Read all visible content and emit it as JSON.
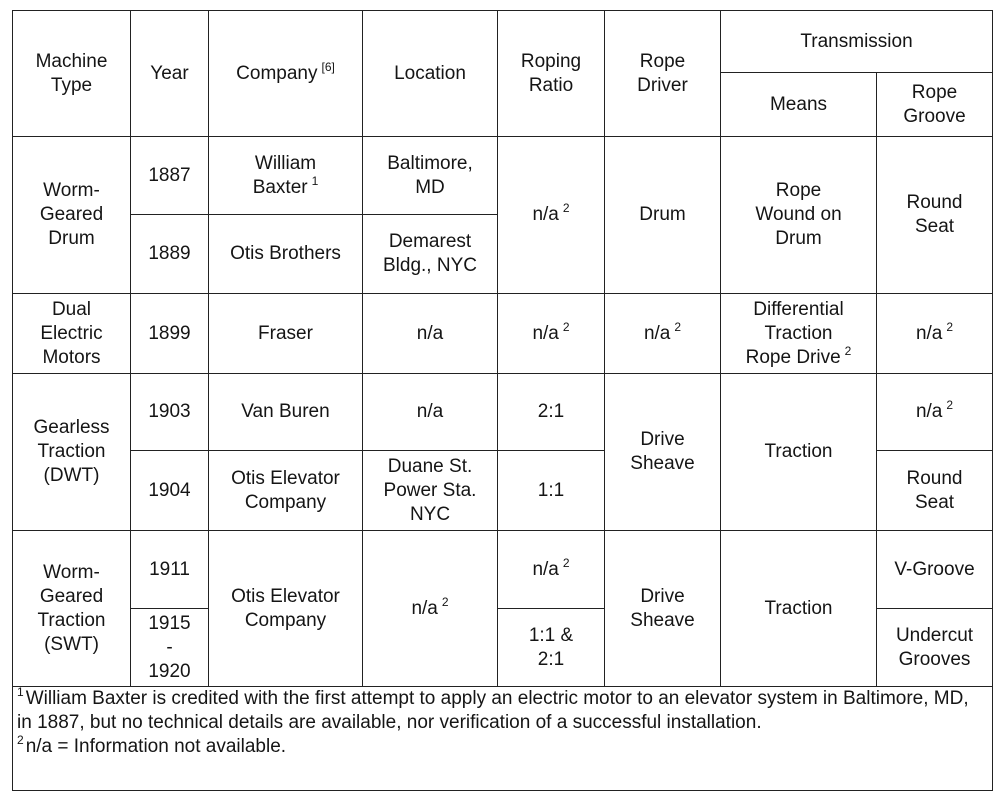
{
  "columns": [
    {
      "text": "Machine\nType"
    },
    {
      "text": "Year"
    },
    {
      "text": "Company",
      "note": "[6]"
    },
    {
      "text": "Location"
    },
    {
      "text": "Roping\nRatio"
    },
    {
      "text": "Rope\nDriver"
    }
  ],
  "transmission": {
    "title": "Transmission",
    "subcolumns": [
      {
        "text": "Means"
      },
      {
        "text": "Rope\nGroove"
      }
    ]
  },
  "rows": [
    [
      {
        "text": "Worm-\nGeared\nDrum"
      },
      {
        "text": "1887"
      },
      {
        "text": "William\nBaxter",
        "note": "1"
      },
      {
        "text": "Baltimore,\nMD"
      },
      {
        "text": "n/a",
        "note": "2"
      },
      {
        "text": "Drum"
      },
      {
        "text": "Rope\nWound on\nDrum"
      },
      {
        "text": "Round\nSeat"
      }
    ],
    [
      {
        "text": "1889"
      },
      {
        "text": "Otis Brothers"
      },
      {
        "text": "Demarest\nBldg., NYC"
      }
    ],
    [
      {
        "text": "Dual\nElectric\nMotors"
      },
      {
        "text": "1899"
      },
      {
        "text": "Fraser"
      },
      {
        "text": "n/a"
      },
      {
        "text": "n/a",
        "note": "2"
      },
      {
        "text": "n/a",
        "note": "2"
      },
      {
        "text": "Differential\nTraction\nRope Drive",
        "note": "2"
      },
      {
        "text": "n/a",
        "note": "2"
      }
    ],
    [
      {
        "text": "Gearless\nTraction\n(DWT)"
      },
      {
        "text": "1903"
      },
      {
        "text": "Van Buren"
      },
      {
        "text": "n/a"
      },
      {
        "text": "2:1"
      },
      {
        "text": "Drive\nSheave"
      },
      {
        "text": "Traction"
      },
      {
        "text": "n/a",
        "note": "2"
      }
    ],
    [
      {
        "text": "1904"
      },
      {
        "text": "Otis Elevator\nCompany"
      },
      {
        "text": "Duane St.\nPower Sta.\nNYC"
      },
      {
        "text": "1:1"
      },
      {
        "text": "Round\nSeat"
      }
    ],
    [
      {
        "text": "Worm-\nGeared\nTraction\n(SWT)"
      },
      {
        "text": "1911"
      },
      {
        "text": "Otis Elevator\nCompany"
      },
      {
        "text": "n/a",
        "note": "2"
      },
      {
        "text": "n/a",
        "note": "2"
      },
      {
        "text": "Drive\nSheave"
      },
      {
        "text": "Traction"
      },
      {
        "text": "V-Groove"
      }
    ],
    [
      {
        "text": "1915\n-\n1920"
      },
      {
        "text": "1:1 &\n2:1"
      },
      {
        "text": "Undercut\nGrooves"
      }
    ]
  ],
  "footnotes": [
    {
      "mark": "1",
      "text": "William Baxter is credited with the first attempt to apply an electric motor to an elevator system in Baltimore, MD, in 1887, but no technical details are available, nor verification of a successful installation."
    },
    {
      "mark": "2",
      "text": "n/a = Information not available."
    }
  ]
}
